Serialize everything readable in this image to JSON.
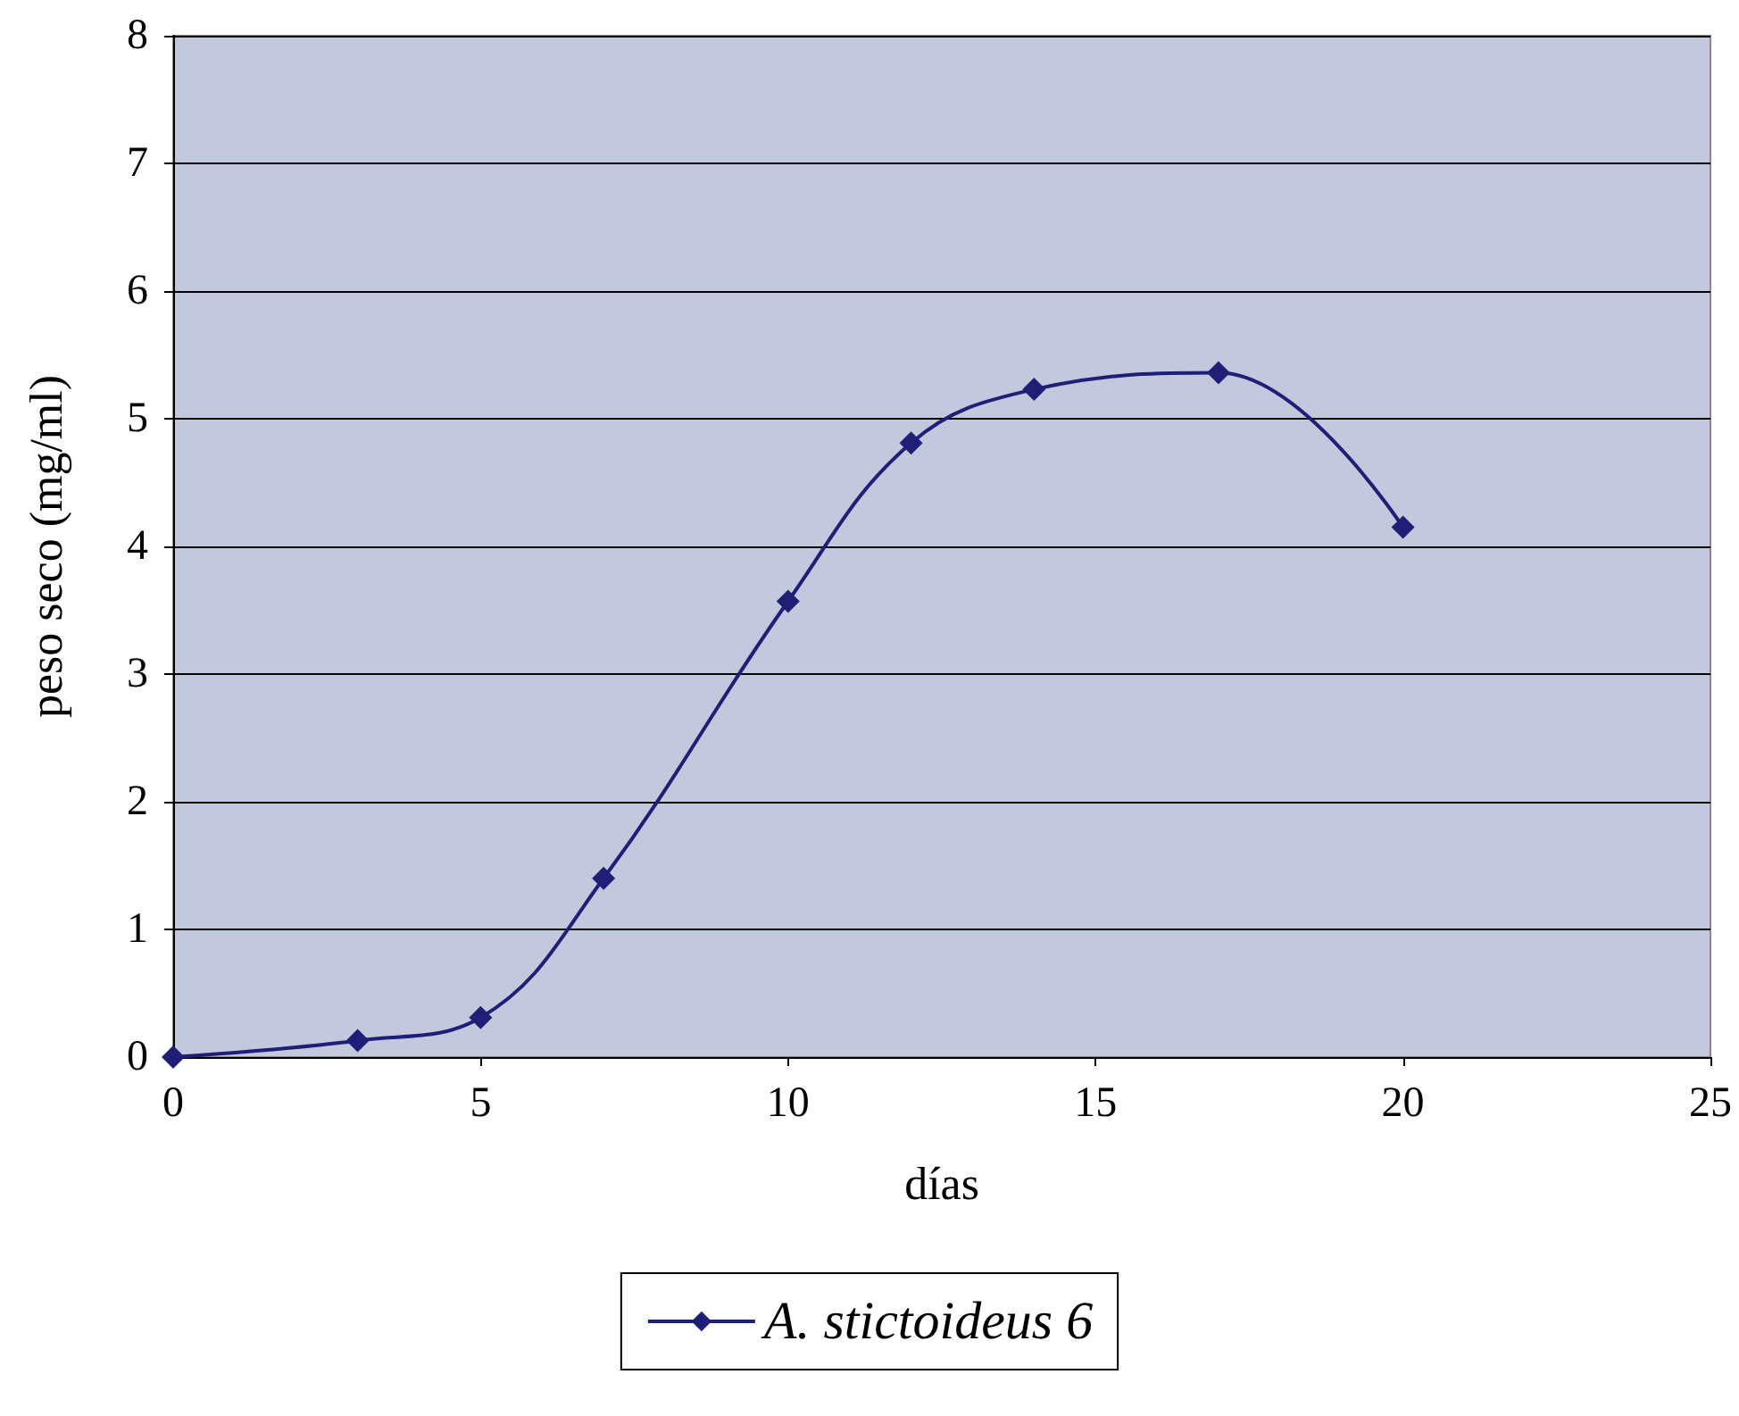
{
  "chart_data": {
    "type": "line",
    "xlabel": "días",
    "ylabel": "peso seco (mg/ml)",
    "x": [
      0,
      3,
      5,
      7,
      10,
      12,
      14,
      17,
      20
    ],
    "series": [
      {
        "name": "A. stictoideus 6",
        "color": "#1f1f78",
        "values": [
          0,
          0.13,
          0.31,
          1.4,
          3.57,
          4.81,
          5.23,
          5.36,
          4.15
        ]
      }
    ],
    "xlim": [
      0,
      25
    ],
    "xticks": [
      0,
      5,
      10,
      15,
      20,
      25
    ],
    "ylim": [
      0,
      8
    ],
    "yticks": [
      0,
      1,
      2,
      3,
      4,
      5,
      6,
      7,
      8
    ],
    "grid": "y",
    "legend": "bottom",
    "marker": "diamond",
    "line_style": "solid"
  }
}
